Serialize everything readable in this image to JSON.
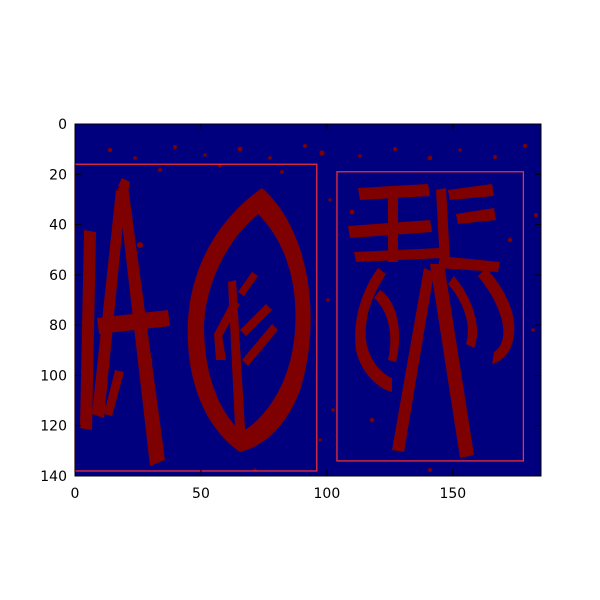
{
  "chart_data": {
    "type": "heatmap",
    "title": "",
    "xlabel": "",
    "ylabel": "",
    "xlim": [
      0,
      185
    ],
    "ylim": [
      140,
      0
    ],
    "y_inverted": true,
    "xticks": [
      0,
      50,
      100,
      150
    ],
    "yticks": [
      0,
      20,
      40,
      60,
      80,
      100,
      120,
      140
    ],
    "colormap": {
      "background": "#00007f",
      "foreground": "#7f0000"
    },
    "grid": false,
    "legend": "none",
    "bounding_boxes": [
      {
        "x0": 0,
        "y0": 16,
        "x1": 96,
        "y1": 138,
        "color": "#ff3030"
      },
      {
        "x0": 104,
        "y0": 19,
        "x1": 178,
        "y1": 134,
        "color": "#ff3030"
      }
    ]
  }
}
